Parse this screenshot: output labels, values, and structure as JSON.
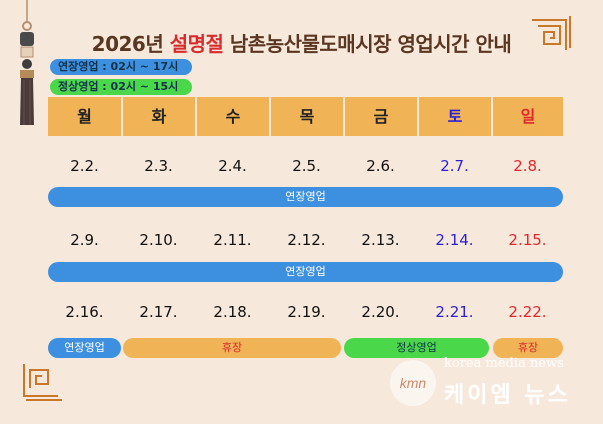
{
  "title": {
    "year": "2026년",
    "highlight": "설명절",
    "rest": "남촌농산물도매시장 영업시간 안내"
  },
  "legend": {
    "extended": "연장영업 : 02시 ~ 17시",
    "regular": "정상영업 : 02시 ~ 15시"
  },
  "days": [
    "월",
    "화",
    "수",
    "목",
    "금",
    "토",
    "일"
  ],
  "weeks": [
    [
      "2.2.",
      "2.3.",
      "2.4.",
      "2.5.",
      "2.6.",
      "2.7.",
      "2.8."
    ],
    [
      "2.9.",
      "2.10.",
      "2.11.",
      "2.12.",
      "2.13.",
      "2.14.",
      "2.15."
    ],
    [
      "2.16.",
      "2.17.",
      "2.18.",
      "2.19.",
      "2.20.",
      "2.21.",
      "2.22."
    ]
  ],
  "bars": {
    "week1": "연장영업",
    "week2": "연장영업",
    "week3_mon": "연장영업",
    "week3_closed": "휴장",
    "week3_fri": "정상영업",
    "week3_sun": "휴장"
  },
  "brand": {
    "en": "korea media news",
    "logo": "kmn",
    "ko": "케이엠 뉴스"
  },
  "colors": {
    "extended": "#3d8fe0",
    "regular": "#4ad84a",
    "closed": "#f0b356",
    "saturday": "#2d1fd4",
    "sunday": "#e0282e"
  }
}
